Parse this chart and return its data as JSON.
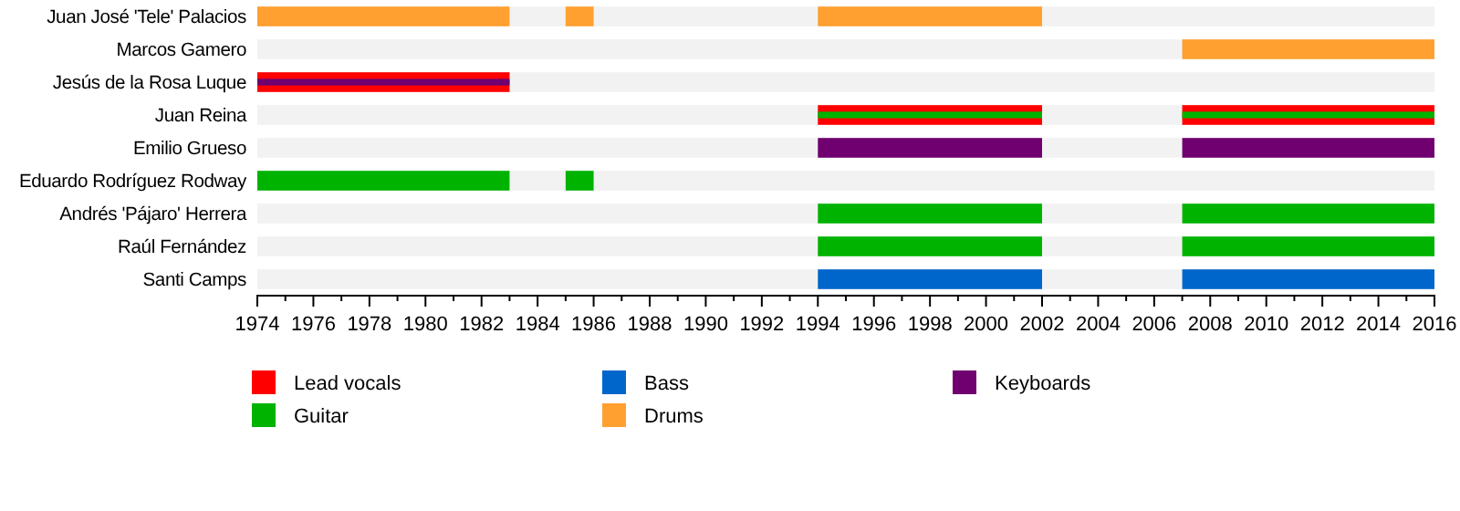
{
  "chart_data": {
    "type": "bar",
    "orientation": "horizontal",
    "legend": "bottom",
    "grid": false,
    "categories": [
      "Juan José 'Tele' Palacios",
      "Marcos Gamero",
      "Jesús de la Rosa Luque",
      "Juan Reina",
      "Emilio Grueso",
      "Eduardo Rodríguez Rodway",
      "Andrés 'Pájaro' Herrera",
      "Raúl Fernández",
      "Santi Camps"
    ],
    "xlim": [
      1974,
      2016
    ],
    "xticks": [
      1974,
      {
        "value": 1975,
        "label": null
      },
      1976,
      {
        "value": 1977,
        "label": null
      },
      1978,
      {
        "value": 1979,
        "label": null
      },
      1980,
      {
        "value": 1981,
        "label": null
      },
      1982,
      {
        "value": 1983,
        "label": null
      },
      1984,
      {
        "value": 1985,
        "label": null
      },
      1986,
      {
        "value": 1987,
        "label": null
      },
      1988,
      {
        "value": 1989,
        "label": null
      },
      1990,
      {
        "value": 1991,
        "label": null
      },
      1992,
      {
        "value": 1993,
        "label": null
      },
      1994,
      {
        "value": 1995,
        "label": null
      },
      1996,
      {
        "value": 1997,
        "label": null
      },
      1998,
      {
        "value": 1999,
        "label": null
      },
      2000,
      {
        "value": 2001,
        "label": null
      },
      2002,
      {
        "value": 2003,
        "label": null
      },
      2004,
      {
        "value": 2005,
        "label": null
      },
      2006,
      {
        "value": 2007,
        "label": null
      },
      2008,
      {
        "value": 2009,
        "label": null
      },
      2010,
      {
        "value": 2011,
        "label": null
      },
      2012,
      {
        "value": 2013,
        "label": null
      },
      2014,
      {
        "value": 2015,
        "label": null
      },
      2016
    ],
    "series": [
      {
        "name": "Lead vocals",
        "color": "#ff0000",
        "base": [
          null,
          null,
          1974,
          1994,
          null,
          null,
          null,
          null,
          null
        ],
        "values": [
          null,
          null,
          9,
          8,
          null,
          null,
          null,
          null,
          null
        ]
      },
      {
        "color": "#ff0000",
        "base": [
          null,
          null,
          null,
          2007,
          null,
          null,
          null,
          null,
          null
        ],
        "values": [
          null,
          null,
          null,
          9,
          null,
          null,
          null,
          null,
          null
        ]
      },
      {
        "name": "Guitar",
        "color": "#00b300",
        "base": [
          null,
          null,
          null,
          1994,
          null,
          1974,
          1994,
          1994,
          null
        ],
        "values": [
          null,
          null,
          null,
          8,
          null,
          9,
          8,
          8,
          null
        ]
      },
      {
        "color": "#00b300",
        "base": [
          null,
          null,
          null,
          2007,
          null,
          1985,
          2007,
          2007,
          null
        ],
        "values": [
          null,
          null,
          null,
          9,
          null,
          1,
          9,
          9,
          null
        ]
      },
      {
        "name": "Bass",
        "color": "#0066cc",
        "base": [
          null,
          null,
          null,
          null,
          null,
          null,
          null,
          null,
          1994
        ],
        "values": [
          null,
          null,
          null,
          null,
          null,
          null,
          null,
          null,
          8
        ]
      },
      {
        "color": "#0066cc",
        "base": [
          null,
          null,
          null,
          null,
          null,
          null,
          null,
          null,
          2007
        ],
        "values": [
          null,
          null,
          null,
          null,
          null,
          null,
          null,
          null,
          9
        ]
      },
      {
        "name": "Drums",
        "color": "#ffa030",
        "base": [
          1974,
          2007,
          null,
          null,
          null,
          null,
          null,
          null,
          null
        ],
        "values": [
          9,
          9,
          null,
          null,
          null,
          null,
          null,
          null,
          null
        ]
      },
      {
        "color": "#ffa030",
        "base": [
          1985,
          null,
          null,
          null,
          null,
          null,
          null,
          null,
          null
        ],
        "values": [
          1,
          null,
          null,
          null,
          null,
          null,
          null,
          null,
          null
        ]
      },
      {
        "color": "#ffa030",
        "base": [
          1994,
          null,
          null,
          null,
          null,
          null,
          null,
          null,
          null
        ],
        "values": [
          8,
          null,
          null,
          null,
          null,
          null,
          null,
          null,
          null
        ]
      },
      {
        "name": "Keyboards",
        "color": "#700070",
        "base": [
          null,
          null,
          1974,
          null,
          1994,
          null,
          null,
          null,
          null
        ],
        "values": [
          null,
          null,
          9,
          null,
          8,
          null,
          null,
          null,
          null
        ]
      },
      {
        "color": "#700070",
        "base": [
          null,
          null,
          null,
          null,
          2007,
          null,
          null,
          null,
          null
        ],
        "values": [
          null,
          null,
          null,
          null,
          9,
          null,
          null,
          null,
          null
        ]
      }
    ]
  }
}
